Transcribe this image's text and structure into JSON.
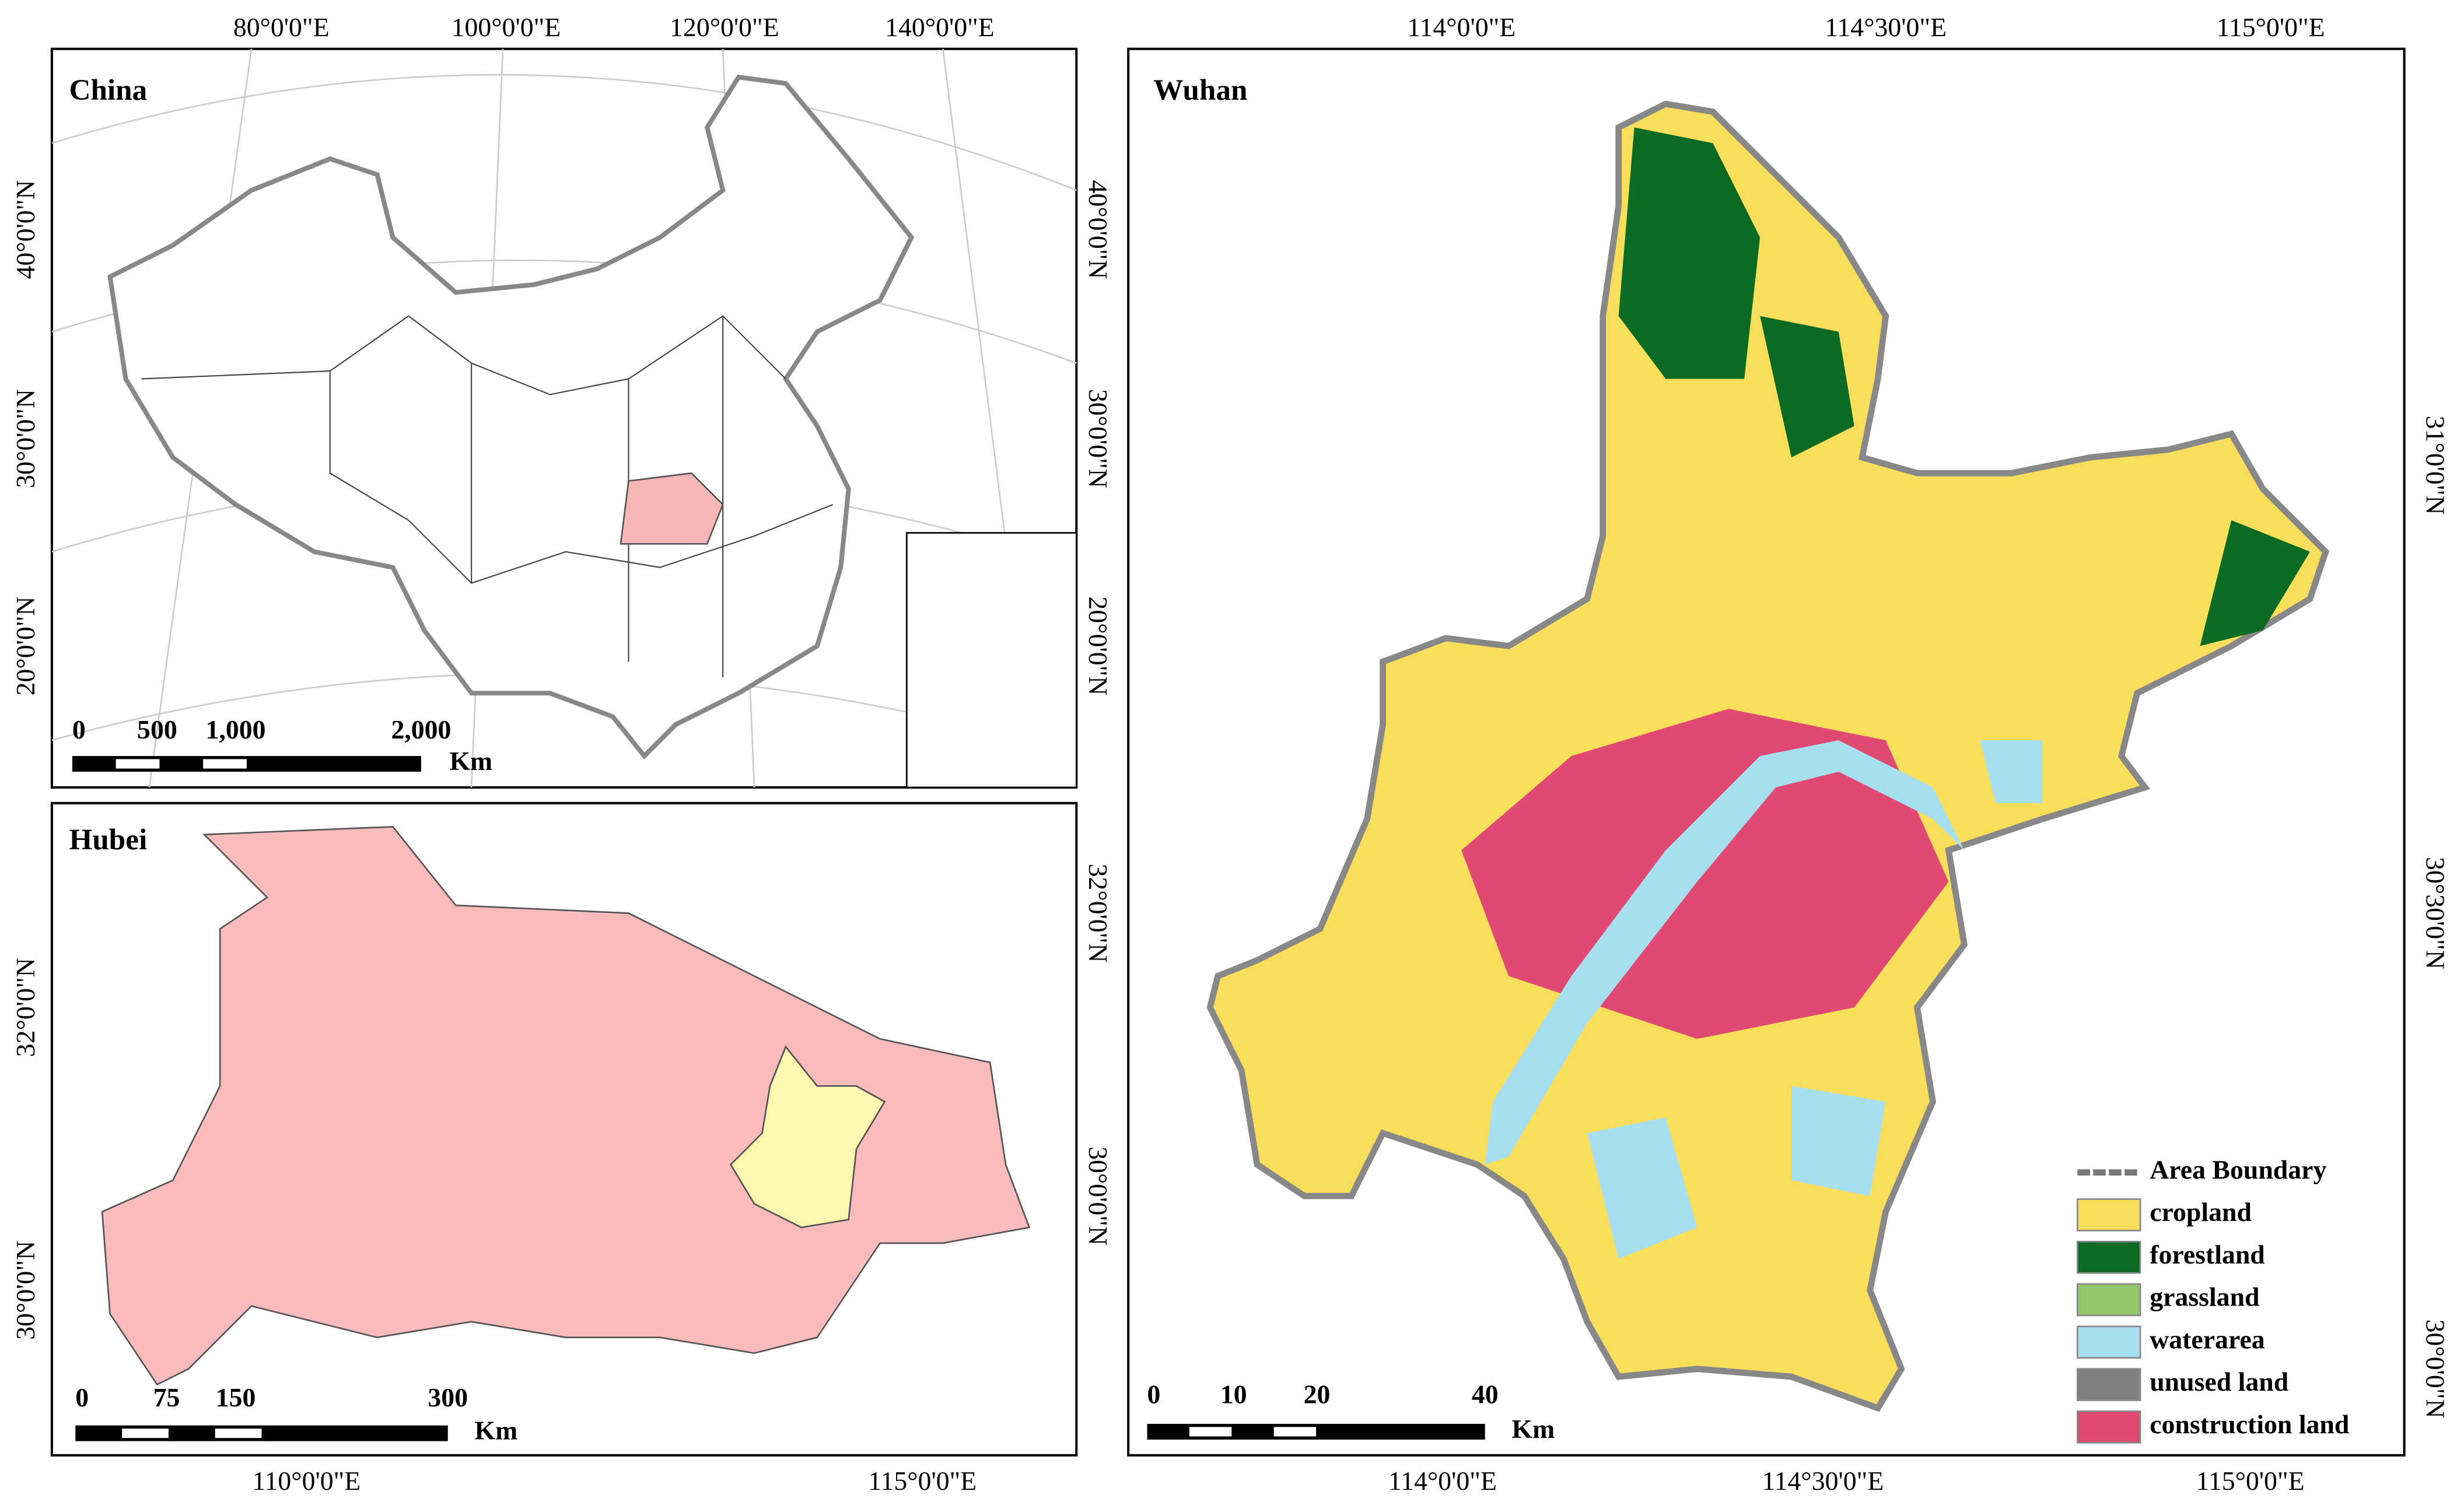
{
  "panels": [
    {
      "title": "China",
      "top_labels": [
        "80°0'0\"E",
        "100°0'0\"E",
        "120°0'0\"E",
        "140°0'0\"E"
      ],
      "left_labels": [
        "40°0'0\"N",
        "30°0'0\"N",
        "20°0'0\"N"
      ],
      "right_labels": [
        "40°0'0\"N",
        "30°0'0\"N",
        "20°0'0\"N"
      ],
      "scale": {
        "labels": [
          "0",
          "500",
          "1,000",
          "2,000"
        ],
        "unit": "Km"
      }
    },
    {
      "title": "Hubei",
      "bottom_labels": [
        "110°0'0\"E",
        "115°0'0\"E"
      ],
      "left_labels": [
        "32°0'0\"N",
        "30°0'0\"N"
      ],
      "right_labels": [
        "32°0'0\"N",
        "30°0'0\"N"
      ],
      "scale": {
        "labels": [
          "0",
          "75",
          "150",
          "300"
        ],
        "unit": "Km"
      }
    },
    {
      "title": "Wuhan",
      "top_labels": [
        "114°0'0\"E",
        "114°30'0\"E",
        "115°0'0\"E"
      ],
      "bottom_labels": [
        "114°0'0\"E",
        "114°30'0\"E",
        "115°0'0\"E"
      ],
      "right_labels": [
        "31°0'0\"N",
        "30°30'0\"N",
        "30°0'0\"N"
      ],
      "scale": {
        "labels": [
          "0",
          "10",
          "20",
          "40"
        ],
        "unit": "Km"
      },
      "legend": [
        {
          "label": "Area Boundary",
          "color": "#777777"
        },
        {
          "label": "cropland",
          "color": "#f8de5a"
        },
        {
          "label": "forestland",
          "color": "#0b6b23"
        },
        {
          "label": "grassland",
          "color": "#93c86a"
        },
        {
          "label": "waterarea",
          "color": "#a8dff0"
        },
        {
          "label": "unused land",
          "color": "#808080"
        },
        {
          "label": "construction land",
          "color": "#e04a72"
        }
      ]
    }
  ]
}
